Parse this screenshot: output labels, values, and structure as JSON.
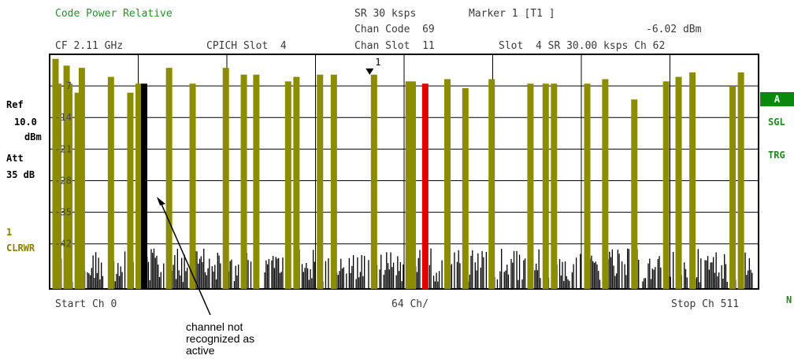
{
  "header": {
    "title": "Code Power Relative",
    "sr": "SR 30 ksps",
    "marker": "Marker 1 [T1 ]",
    "chan_code": "Chan Code  69",
    "marker_value": "-6.02 dBm",
    "cf": "CF 2.11 GHz",
    "cpich_slot": "CPICH Slot  4",
    "chan_slot": "Chan Slot  11",
    "slot_info": "Slot  4 SR 30.00 ksps Ch 62"
  },
  "left_panel": {
    "ref_label": "Ref",
    "ref_value": "10.0",
    "ref_unit": "dBm",
    "att_label": "Att",
    "att_value": "35 dB",
    "trace_num": "1",
    "trace_mode": "CLRWR"
  },
  "right_panel": {
    "a_badge": "A",
    "sgl": "SGL",
    "trg": "TRG",
    "n_mark": "N"
  },
  "footer": {
    "start": "Start Ch 0",
    "per_div": "64 Ch/",
    "stop": "Stop Ch 511"
  },
  "annotation": {
    "text": "channel not recognized as active"
  },
  "marker_tag": "1",
  "chart_data": {
    "type": "bar",
    "y_ticks": [
      "-7",
      "-14",
      "-21",
      "-28",
      "-35",
      "-42"
    ],
    "ylim": [
      -52,
      0
    ],
    "x_range": [
      0,
      511
    ],
    "colors": {
      "active": "#8c8c00",
      "inactive": "#000000",
      "marked": "#e00000",
      "not_recognized": "#000000",
      "grid": "#000000"
    },
    "active_bars": [
      {
        "ch": 2,
        "v": -1
      },
      {
        "ch": 12,
        "v": -6.5
      },
      {
        "ch": 21,
        "v": -3
      },
      {
        "ch": 56,
        "v": -8.5
      },
      {
        "ch": 62,
        "v": -6.5
      },
      {
        "ch": 84,
        "v": -3
      },
      {
        "ch": 101,
        "v": -6.5
      },
      {
        "ch": 147,
        "v": -4.5
      },
      {
        "ch": 176,
        "v": -5
      },
      {
        "ch": 203,
        "v": -4.5
      },
      {
        "ch": 232,
        "v": -4.5
      },
      {
        "ch": 260,
        "v": -6
      },
      {
        "ch": 285,
        "v": -5.5
      },
      {
        "ch": 298,
        "v": -7.5
      },
      {
        "ch": 317,
        "v": -5.5
      },
      {
        "ch": 345,
        "v": -6.5
      },
      {
        "ch": 362,
        "v": -6.5
      },
      {
        "ch": 386,
        "v": -6.5
      },
      {
        "ch": 399,
        "v": -5.5
      },
      {
        "ch": 443,
        "v": -6
      },
      {
        "ch": 462,
        "v": -4
      },
      {
        "ch": 491,
        "v": -7
      },
      {
        "ch": 497,
        "v": -4
      }
    ],
    "extra_active_bars": [
      {
        "ch": 4,
        "v": -6.5
      },
      {
        "ch": 10,
        "v": -2.5
      },
      {
        "ch": 18,
        "v": -8.5
      },
      {
        "ch": 42,
        "v": -5
      },
      {
        "ch": 125,
        "v": -3
      },
      {
        "ch": 138,
        "v": -4.5
      },
      {
        "ch": 170,
        "v": -6
      },
      {
        "ch": 193,
        "v": -4.5
      },
      {
        "ch": 257,
        "v": -6
      },
      {
        "ch": 356,
        "v": -6.5
      },
      {
        "ch": 420,
        "v": -10
      },
      {
        "ch": 452,
        "v": -5
      }
    ],
    "not_recognized_bar": {
      "ch": 66,
      "v": -6.5
    },
    "marked_bar": {
      "ch": 269,
      "v": -6.5
    },
    "noise_floor": -42
  }
}
